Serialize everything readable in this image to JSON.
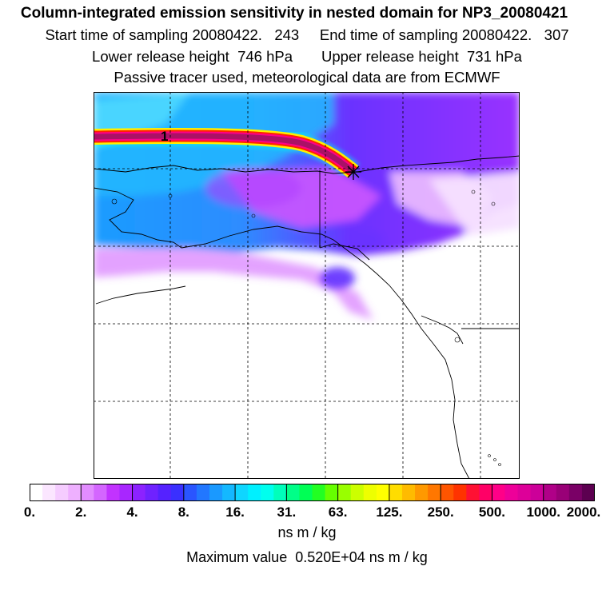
{
  "header": {
    "title": "Column-integrated emission sensitivity in nested domain for NP3_20080421",
    "start_time": "Start time of sampling 20080422.   243",
    "end_time": "End time of sampling 20080422.   307",
    "lower_height": "Lower release height  746 hPa",
    "upper_height": "Upper release height  731 hPa",
    "tracer_note": "Passive tracer used, meteorological data are from ECMWF"
  },
  "map": {
    "trajectory_label": "1",
    "colors": {
      "ocean_high": "#33aaff",
      "field_mid": "#9933ff",
      "field_magenta": "#cc33ff",
      "field_low": "#f2c8ff",
      "plume_core": "#aa1166",
      "plume_edge": "#ff2200",
      "plume_glow": "#ffee00"
    }
  },
  "colorbar": {
    "tick_labels": [
      "0.",
      "2.",
      "4.",
      "8.",
      "16.",
      "31.",
      "63.",
      "125.",
      "250.",
      "500.",
      "1000.",
      "2000."
    ],
    "colors": [
      "#ffffff",
      "#fbe6ff",
      "#f5ccff",
      "#eeb0ff",
      "#e28cff",
      "#d466ff",
      "#c233ff",
      "#a826ff",
      "#8c22ff",
      "#6f22ff",
      "#5522ff",
      "#3a30ff",
      "#2a55ff",
      "#2277ff",
      "#1a99ff",
      "#14b8ff",
      "#0fd6ff",
      "#00f0ff",
      "#00ffee",
      "#00ffbb",
      "#00ff88",
      "#00ff55",
      "#22ff22",
      "#66ff00",
      "#99ff00",
      "#ccff00",
      "#eeff00",
      "#ffff00",
      "#ffdd00",
      "#ffbb00",
      "#ff9900",
      "#ff7700",
      "#ff5500",
      "#ff3300",
      "#ff1133",
      "#ff0066",
      "#ff0088",
      "#ee0099",
      "#dd0099",
      "#cc0099",
      "#b00088",
      "#990077",
      "#7a0066",
      "#5c0050"
    ],
    "units": "ns m / kg",
    "max_value": "Maximum value  0.520E+04 ns m / kg"
  }
}
